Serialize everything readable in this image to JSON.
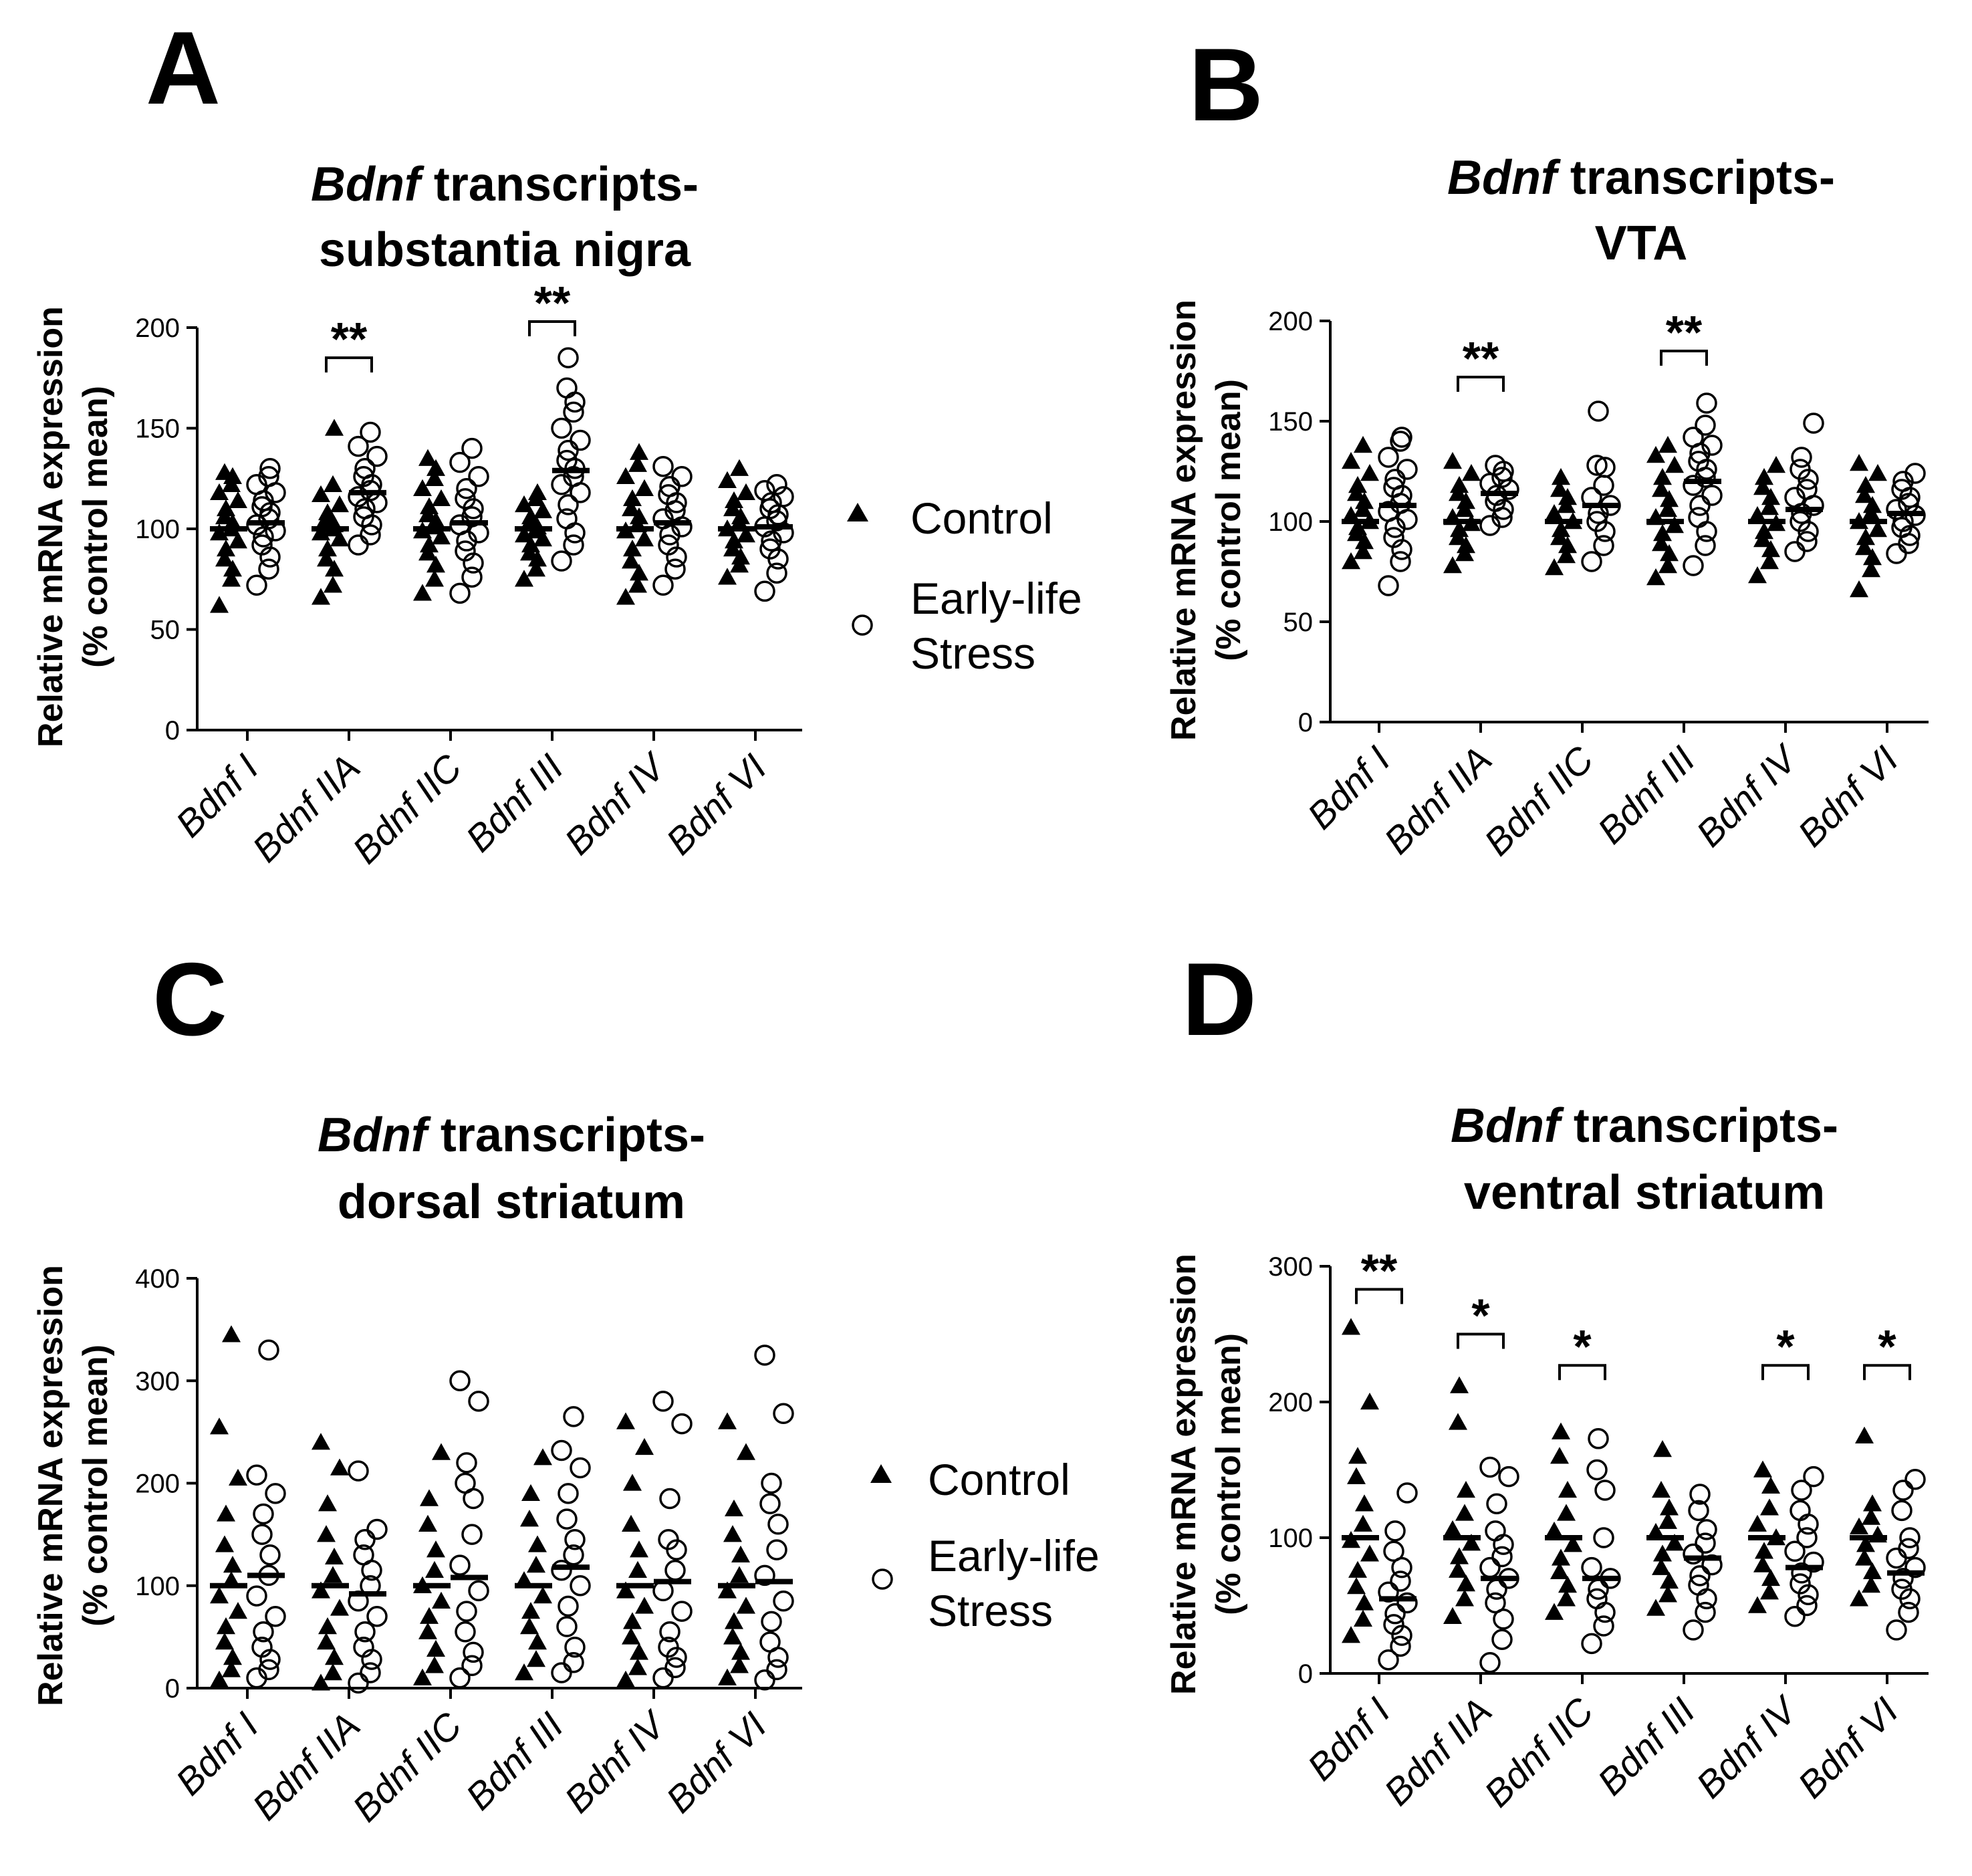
{
  "legend": {
    "control_label": "Control",
    "els_label_line1": "Early-life",
    "els_label_line2": "Stress"
  },
  "chart_data": [
    {
      "panel": "A",
      "type": "scatter",
      "title_italic": "Bdnf",
      "title_line1_rest": "transcripts-",
      "title_line2": "substantia nigra",
      "ylabel_line1": "Relative mRNA expression",
      "ylabel_line2": "(% control mean)",
      "ylim": [
        0,
        200
      ],
      "yticks": [
        0,
        50,
        100,
        150,
        200
      ],
      "categories": [
        "Bdnf I",
        "Bdnf IIA",
        "Bdnf IIC",
        "Bdnf III",
        "Bdnf IV",
        "Bdnf VI"
      ],
      "series": [
        {
          "name": "Control",
          "marker": "filled-triangle",
          "means": [
            100,
            100,
            100,
            100,
            100,
            100
          ],
          "values": [
            [
              62,
              75,
              80,
              85,
              90,
              94,
              98,
              100,
              103,
              106,
              110,
              114,
              118,
              122,
              126,
              128
            ],
            [
              66,
              72,
              80,
              85,
              90,
              95,
              98,
              100,
              102,
              105,
              108,
              112,
              117,
              122,
              150
            ],
            [
              68,
              75,
              82,
              88,
              92,
              96,
              99,
              101,
              104,
              107,
              111,
              115,
              120,
              125,
              130,
              135
            ],
            [
              75,
              80,
              85,
              88,
              92,
              95,
              97,
              99,
              101,
              103,
              106,
              109,
              112,
              115,
              118
            ],
            [
              66,
              72,
              78,
              84,
              90,
              95,
              99,
              102,
              106,
              110,
              115,
              120,
              126,
              132,
              138
            ],
            [
              76,
              82,
              86,
              90,
              94,
              97,
              100,
              103,
              106,
              110,
              114,
              118,
              124,
              130
            ]
          ]
        },
        {
          "name": "Early-life Stress",
          "marker": "open-circle",
          "means": [
            103,
            118,
            103,
            129,
            103,
            101
          ],
          "values": [
            [
              72,
              80,
              86,
              92,
              96,
              99,
              102,
              105,
              108,
              111,
              114,
              118,
              122,
              126,
              130
            ],
            [
              92,
              97,
              102,
              106,
              110,
              113,
              116,
              119,
              122,
              126,
              130,
              136,
              141,
              148
            ],
            [
              68,
              76,
              83,
              89,
              94,
              98,
              102,
              106,
              110,
              115,
              120,
              126,
              133,
              140
            ],
            [
              84,
              92,
              98,
              105,
              112,
              118,
              122,
              126,
              130,
              134,
              139,
              144,
              150,
              158,
              163,
              170,
              185
            ],
            [
              72,
              80,
              86,
              92,
              97,
              101,
              105,
              109,
              113,
              117,
              121,
              126,
              131
            ],
            [
              69,
              78,
              85,
              90,
              94,
              98,
              101,
              104,
              107,
              110,
              113,
              116,
              119,
              122
            ]
          ]
        }
      ],
      "significance": [
        {
          "category": "Bdnf IIA",
          "label": "**",
          "bracket_level": 185
        },
        {
          "category": "Bdnf III",
          "label": "**",
          "bracket_level": 203
        }
      ]
    },
    {
      "panel": "B",
      "type": "scatter",
      "title_italic": "Bdnf",
      "title_line1_rest": "transcripts-",
      "title_line2": "VTA",
      "ylabel_line1": "Relative mRNA expression",
      "ylabel_line2": "(% control mean)",
      "ylim": [
        0,
        200
      ],
      "yticks": [
        0,
        50,
        100,
        150,
        200
      ],
      "categories": [
        "Bdnf I",
        "Bdnf IIA",
        "Bdnf IIC",
        "Bdnf III",
        "Bdnf IV",
        "Bdnf VI"
      ],
      "series": [
        {
          "name": "Control",
          "marker": "filled-triangle",
          "means": [
            100,
            100,
            100,
            100,
            100,
            100
          ],
          "values": [
            [
              80,
              85,
              90,
              94,
              97,
              100,
              103,
              106,
              110,
              114,
              118,
              124,
              130,
              138
            ],
            [
              78,
              84,
              88,
              92,
              96,
              99,
              102,
              106,
              110,
              114,
              118,
              124,
              130
            ],
            [
              77,
              83,
              88,
              92,
              96,
              100,
              104,
              108,
              112,
              116,
              122
            ],
            [
              72,
              78,
              84,
              89,
              94,
              98,
              102,
              106,
              111,
              116,
              122,
              128,
              133,
              138
            ],
            [
              73,
              80,
              86,
              91,
              95,
              99,
              103,
              107,
              112,
              117,
              122,
              128
            ],
            [
              66,
              76,
              82,
              87,
              92,
              96,
              100,
              104,
              108,
              113,
              118,
              124,
              129
            ]
          ]
        },
        {
          "name": "Early-life Stress",
          "marker": "open-circle",
          "means": [
            108,
            114,
            108,
            120,
            106,
            104
          ],
          "values": [
            [
              68,
              80,
              86,
              92,
              97,
              101,
              105,
              109,
              113,
              117,
              121,
              126,
              132,
              140,
              142
            ],
            [
              98,
              102,
              106,
              110,
              113,
              116,
              119,
              122,
              125,
              128
            ],
            [
              80,
              88,
              95,
              100,
              104,
              108,
              112,
              118,
              127,
              128,
              155
            ],
            [
              78,
              88,
              95,
              102,
              108,
              113,
              118,
              122,
              126,
              130,
              134,
              138,
              142,
              148,
              159
            ],
            [
              85,
              90,
              95,
              100,
              104,
              108,
              112,
              116,
              121,
              126,
              132,
              149
            ],
            [
              84,
              89,
              93,
              97,
              100,
              103,
              106,
              109,
              112,
              116,
              120,
              124
            ]
          ]
        }
      ],
      "significance": [
        {
          "category": "Bdnf IIA",
          "label": "**",
          "bracket_level": 172
        },
        {
          "category": "Bdnf III",
          "label": "**",
          "bracket_level": 185
        }
      ]
    },
    {
      "panel": "C",
      "type": "scatter",
      "title_italic": "Bdnf",
      "title_line1_rest": "transcripts-",
      "title_line2": "dorsal striatum",
      "ylabel_line1": "Relative mRNA expression",
      "ylabel_line2": "(% control mean)",
      "ylim": [
        0,
        400
      ],
      "yticks": [
        0,
        100,
        200,
        300,
        400
      ],
      "categories": [
        "Bdnf I",
        "Bdnf IIA",
        "Bdnf IIC",
        "Bdnf III",
        "Bdnf IV",
        "Bdnf VI"
      ],
      "series": [
        {
          "name": "Control",
          "marker": "filled-triangle",
          "means": [
            100,
            100,
            100,
            100,
            100,
            100
          ],
          "values": [
            [
              8,
              18,
              30,
              45,
              60,
              75,
              90,
              105,
              120,
              140,
              170,
              205,
              255,
              345
            ],
            [
              5,
              15,
              30,
              45,
              60,
              78,
              95,
              110,
              128,
              150,
              180,
              215,
              240
            ],
            [
              10,
              22,
              38,
              55,
              70,
              85,
              100,
              115,
              135,
              160,
              185,
              230
            ],
            [
              15,
              28,
              45,
              60,
              75,
              90,
              105,
              120,
              140,
              165,
              190,
              225
            ],
            [
              8,
              20,
              35,
              50,
              65,
              80,
              95,
              115,
              135,
              160,
              200,
              235,
              260
            ],
            [
              10,
              22,
              35,
              50,
              65,
              80,
              95,
              110,
              130,
              150,
              175,
              230,
              260
            ]
          ]
        },
        {
          "name": "Early-life Stress",
          "marker": "open-circle",
          "means": [
            110,
            92,
            108,
            118,
            104,
            104
          ],
          "values": [
            [
              10,
              18,
              28,
              40,
              55,
              70,
              90,
              110,
              130,
              150,
              170,
              190,
              208,
              330
            ],
            [
              5,
              15,
              28,
              40,
              55,
              70,
              85,
              100,
              115,
              130,
              145,
              155,
              212
            ],
            [
              10,
              22,
              35,
              55,
              75,
              95,
              120,
              150,
              185,
              200,
              220,
              280,
              300
            ],
            [
              15,
              25,
              40,
              60,
              80,
              100,
              115,
              130,
              145,
              165,
              190,
              215,
              232,
              265
            ],
            [
              10,
              20,
              30,
              40,
              55,
              75,
              95,
              115,
              135,
              145,
              185,
              258,
              280
            ],
            [
              8,
              18,
              30,
              45,
              65,
              85,
              110,
              135,
              160,
              180,
              200,
              268,
              325
            ]
          ]
        }
      ],
      "significance": []
    },
    {
      "panel": "D",
      "type": "scatter",
      "title_italic": "Bdnf",
      "title_line1_rest": "transcripts-",
      "title_line2": "ventral striatum",
      "ylabel_line1": "Relative mRNA expression",
      "ylabel_line2": "(% control mean)",
      "ylim": [
        0,
        300
      ],
      "yticks": [
        0,
        100,
        200,
        300
      ],
      "categories": [
        "Bdnf I",
        "Bdnf IIA",
        "Bdnf IIC",
        "Bdnf III",
        "Bdnf IV",
        "Bdnf VI"
      ],
      "series": [
        {
          "name": "Control",
          "marker": "filled-triangle",
          "means": [
            100,
            100,
            100,
            100,
            100,
            100
          ],
          "values": [
            [
              28,
              40,
              52,
              64,
              76,
              88,
              98,
              110,
              125,
              145,
              160,
              200,
              255
            ],
            [
              42,
              55,
              66,
              76,
              86,
              96,
              106,
              118,
              135,
              185,
              212
            ],
            [
              45,
              55,
              65,
              75,
              85,
              95,
              105,
              118,
              135,
              160,
              178
            ],
            [
              48,
              58,
              68,
              78,
              88,
              96,
              104,
              112,
              122,
              135,
              165
            ],
            [
              50,
              60,
              70,
              80,
              90,
              100,
              110,
              122,
              138,
              150
            ],
            [
              55,
              65,
              75,
              85,
              95,
              102,
              108,
              115,
              125,
              175
            ]
          ]
        },
        {
          "name": "Early-life Stress",
          "marker": "open-circle",
          "means": [
            55,
            70,
            70,
            85,
            78,
            74
          ],
          "values": [
            [
              10,
              20,
              28,
              36,
              44,
              52,
              60,
              68,
              78,
              90,
              105,
              133
            ],
            [
              8,
              25,
              40,
              52,
              62,
              70,
              78,
              86,
              95,
              105,
              125,
              145,
              152
            ],
            [
              22,
              35,
              45,
              55,
              62,
              70,
              78,
              100,
              135,
              150,
              173
            ],
            [
              32,
              45,
              55,
              65,
              72,
              80,
              88,
              96,
              106,
              120,
              132
            ],
            [
              42,
              50,
              58,
              66,
              74,
              82,
              90,
              100,
              110,
              120,
              135,
              145
            ],
            [
              32,
              45,
              55,
              62,
              70,
              78,
              85,
              92,
              100,
              120,
              135,
              143
            ]
          ]
        }
      ],
      "significance": [
        {
          "category": "Bdnf I",
          "label": "**",
          "bracket_level": 283
        },
        {
          "category": "Bdnf IIA",
          "label": "*",
          "bracket_level": 250
        },
        {
          "category": "Bdnf IIC",
          "label": "*",
          "bracket_level": 227
        },
        {
          "category": "Bdnf IV",
          "label": "*",
          "bracket_level": 227
        },
        {
          "category": "Bdnf VI",
          "label": "*",
          "bracket_level": 227
        }
      ]
    }
  ]
}
